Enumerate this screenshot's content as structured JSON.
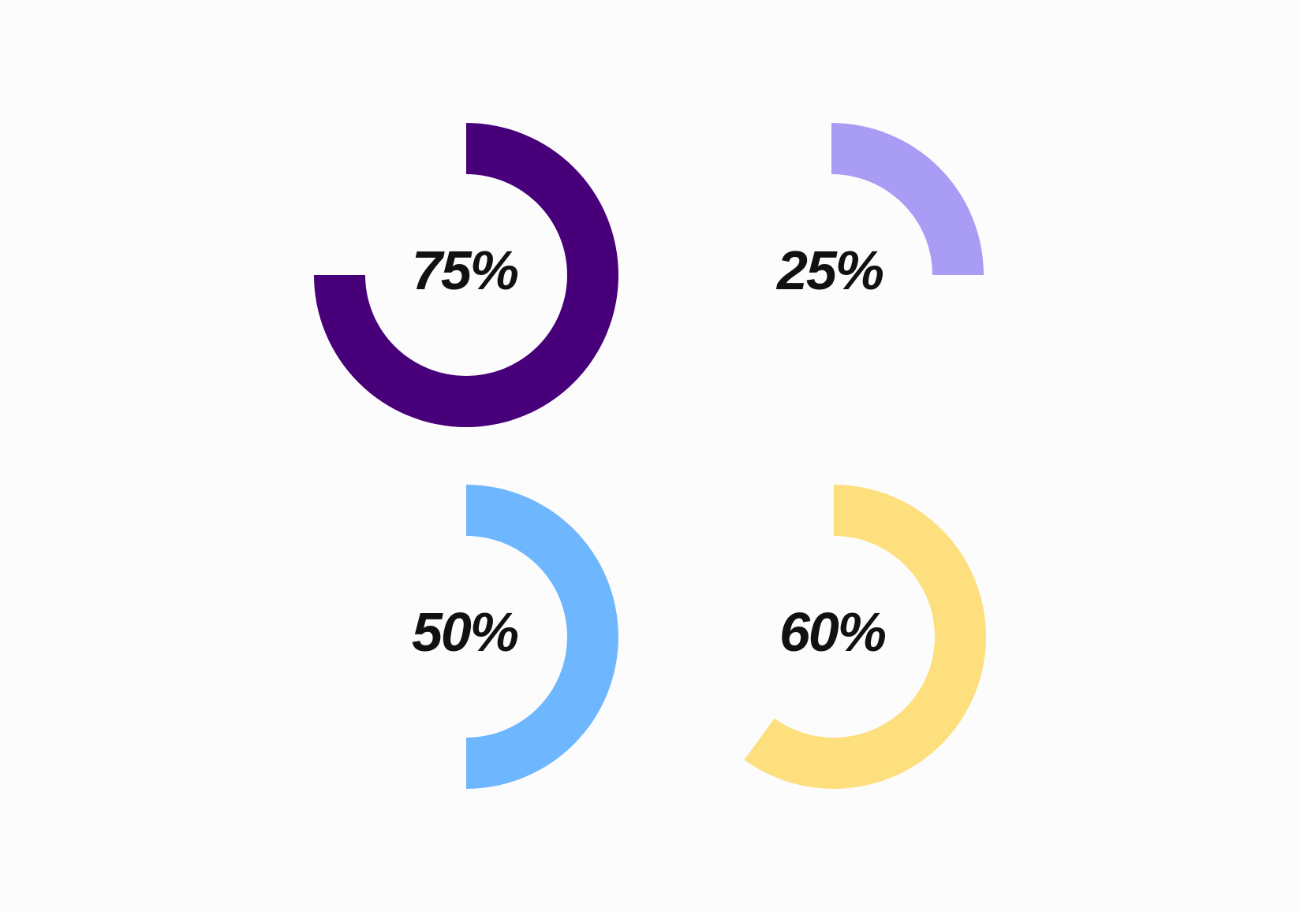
{
  "chart_data": [
    {
      "type": "pie",
      "values": [
        75
      ],
      "labels": [
        "75%"
      ],
      "color": "#48007a"
    },
    {
      "type": "pie",
      "values": [
        25
      ],
      "labels": [
        "25%"
      ],
      "color": "#a99cf5"
    },
    {
      "type": "pie",
      "values": [
        50
      ],
      "labels": [
        "50%"
      ],
      "color": "#6eb6fd"
    },
    {
      "type": "pie",
      "values": [
        60
      ],
      "labels": [
        "60%"
      ],
      "color": "#fedf7d"
    }
  ]
}
